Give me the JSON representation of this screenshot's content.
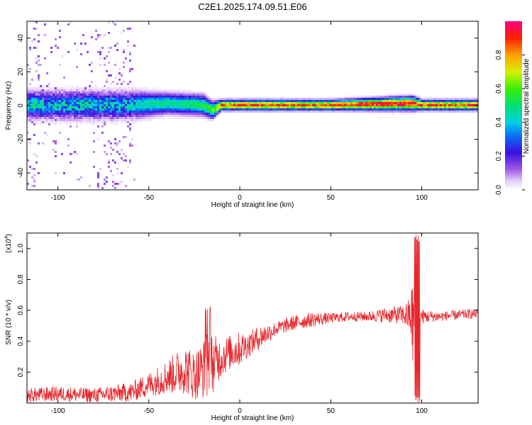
{
  "title": "C2E1.2025.174.09.51.E06",
  "chart_data": [
    {
      "type": "heatmap",
      "xlabel": "Height of straight line (km)",
      "ylabel": "Frequency (Hz)",
      "xlim": [
        -117,
        131
      ],
      "ylim": [
        -50,
        50
      ],
      "xticks": [
        -100,
        -50,
        0,
        50,
        100
      ],
      "yticks": [
        -40,
        -20,
        0,
        20,
        40
      ],
      "colorbar": {
        "label": "Normalized spectral amplitude",
        "range": [
          0,
          1
        ],
        "ticks": [
          "0.0",
          "0.2",
          "0.4",
          "0.6",
          "0.8"
        ]
      },
      "ridge": {
        "description_x_km": [
          -117,
          -60,
          -40,
          -20,
          -15,
          -10,
          0,
          50,
          95,
          100,
          131
        ],
        "center_hz": [
          0,
          0,
          1,
          0,
          -3,
          0,
          0,
          0,
          1,
          0,
          0
        ],
        "halfwidth_hz": [
          8,
          8,
          6,
          6,
          5,
          3,
          3,
          3,
          4,
          3,
          3
        ],
        "peak_amplitude": [
          0.45,
          0.45,
          0.5,
          0.55,
          0.6,
          0.85,
          0.95,
          0.9,
          1.0,
          0.9,
          0.9
        ]
      }
    },
    {
      "type": "line",
      "xlabel": "Height of straight line (km)",
      "ylabel": "SNR (10 * v/v)",
      "yscale_label": "(x10",
      "yscale_exp": "4",
      "yscale_close": ")",
      "xlim": [
        -117,
        131
      ],
      "ylim": [
        0,
        1.1
      ],
      "xticks": [
        -100,
        -50,
        0,
        50,
        100
      ],
      "yticks": [
        0.2,
        0.4,
        0.6,
        0.8,
        1.0
      ],
      "ytick_labels": [
        "0.2",
        "0.4",
        "0.6",
        "0.8",
        "1.0"
      ],
      "color": "#e8262b",
      "series": [
        {
          "x": [
            -117,
            -100,
            -80,
            -60,
            -50,
            -40,
            -30,
            -25,
            -20,
            -17,
            -15,
            -10,
            -5,
            0,
            5,
            10,
            20,
            30,
            40,
            50,
            60,
            70,
            80,
            90,
            94,
            96,
            98,
            100,
            110,
            120,
            131
          ],
          "mean": [
            0.05,
            0.06,
            0.05,
            0.07,
            0.12,
            0.17,
            0.22,
            0.18,
            0.22,
            0.25,
            0.25,
            0.3,
            0.33,
            0.35,
            0.38,
            0.42,
            0.48,
            0.52,
            0.54,
            0.55,
            0.56,
            0.56,
            0.57,
            0.57,
            0.56,
            0.5,
            0.55,
            0.56,
            0.56,
            0.57,
            0.58
          ],
          "spread": [
            0.03,
            0.03,
            0.03,
            0.04,
            0.05,
            0.07,
            0.1,
            0.1,
            0.12,
            0.15,
            0.12,
            0.08,
            0.07,
            0.07,
            0.05,
            0.05,
            0.03,
            0.03,
            0.03,
            0.02,
            0.02,
            0.02,
            0.03,
            0.04,
            0.08,
            0.3,
            0.1,
            0.03,
            0.02,
            0.02,
            0.02
          ]
        }
      ]
    }
  ]
}
